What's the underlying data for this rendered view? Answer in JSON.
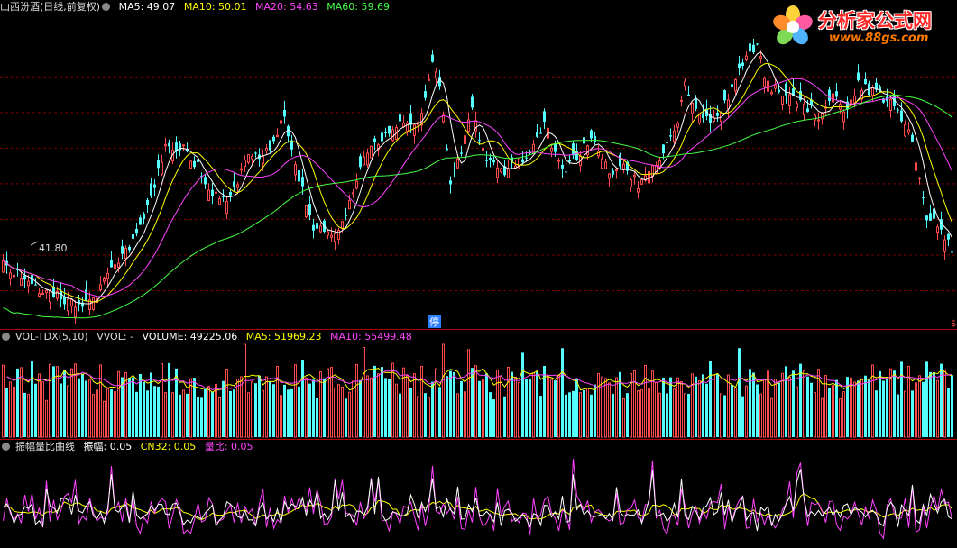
{
  "colors": {
    "up": "#ff4b4b",
    "down": "#54ffff",
    "ma5": "#ffffff",
    "ma10": "#ffff00",
    "ma20": "#ff44ff",
    "ma60": "#44ff44",
    "grid": "#7a0000",
    "separator": "#b00000"
  },
  "price_panel": {
    "stock": "山西汾酒",
    "period": "(日线,前复权)",
    "ma5_label": "MA5: 49.07",
    "ma10_label": "MA10: 50.01",
    "ma20_label": "MA20: 54.63",
    "ma60_label": "MA60: 59.69",
    "low_marker": "41.80",
    "halt_marker": "停",
    "end_marker": "$"
  },
  "volume_panel": {
    "name": "VOL-TDX(5,10)",
    "vvol": "VVOL: -",
    "volume": "VOLUME: 49225.06",
    "ma5": "MA5: 51969.23",
    "ma10": "MA10: 55499.48"
  },
  "amp_panel": {
    "name": "振幅量比曲线",
    "amp": "振幅: 0.05",
    "cn32": "CN32: 0.05",
    "ratio_label": "量比",
    "ratio_value": ": 0.05"
  },
  "logo": {
    "title": "分析家公式网",
    "url": "www.88gs.com"
  },
  "chart_data": [
    {
      "type": "candlestick",
      "title": "山西汾酒 (日线,前复权)",
      "ylim": [
        40,
        82
      ],
      "annotations": [
        {
          "text": "41.80",
          "kind": "period-low"
        },
        {
          "text": "停",
          "kind": "trading-halt"
        }
      ],
      "anchors": [
        [
          0,
          48.5
        ],
        [
          5,
          47.2
        ],
        [
          10,
          45.0
        ],
        [
          15,
          44.6
        ],
        [
          20,
          42.7
        ],
        [
          24,
          43.2
        ],
        [
          29,
          46.9
        ],
        [
          35,
          51.3
        ],
        [
          40,
          56.9
        ],
        [
          45,
          64.8
        ],
        [
          50,
          64.7
        ],
        [
          54,
          62.6
        ],
        [
          58,
          58.2
        ],
        [
          62,
          57.5
        ],
        [
          68,
          63.8
        ],
        [
          73,
          64.5
        ],
        [
          78,
          69.4
        ],
        [
          82,
          60.6
        ],
        [
          86,
          53.9
        ],
        [
          90,
          52.7
        ],
        [
          95,
          55.2
        ],
        [
          100,
          64.1
        ],
        [
          105,
          66.6
        ],
        [
          110,
          68.9
        ],
        [
          114,
          67.6
        ],
        [
          117,
          72.0
        ],
        [
          119,
          77.2
        ],
        [
          121,
          73.2
        ],
        [
          124,
          60.7
        ],
        [
          127,
          64.5
        ],
        [
          130,
          70.3
        ],
        [
          134,
          63.3
        ],
        [
          139,
          61.9
        ],
        [
          145,
          63.8
        ],
        [
          150,
          68.3
        ],
        [
          155,
          62.0
        ],
        [
          160,
          64.4
        ],
        [
          164,
          66.1
        ],
        [
          168,
          61.5
        ],
        [
          172,
          62.6
        ],
        [
          176,
          59.8
        ],
        [
          181,
          62.4
        ],
        [
          186,
          66.7
        ],
        [
          189,
          74.0
        ],
        [
          193,
          70.2
        ],
        [
          197,
          68.9
        ],
        [
          201,
          72.3
        ],
        [
          205,
          76.7
        ],
        [
          209,
          78.9
        ],
        [
          212,
          73.9
        ],
        [
          216,
          72.3
        ],
        [
          221,
          71.1
        ],
        [
          226,
          69.7
        ],
        [
          230,
          73.0
        ],
        [
          233,
          69.8
        ],
        [
          237,
          73.8
        ],
        [
          242,
          72.5
        ],
        [
          247,
          71.3
        ],
        [
          251,
          67.6
        ],
        [
          254,
          60.9
        ],
        [
          256,
          55.3
        ],
        [
          259,
          54.6
        ],
        [
          263,
          51.0
        ]
      ]
    },
    {
      "type": "bar",
      "title": "VOL-TDX(5,10)",
      "series": [
        {
          "name": "VOLUME",
          "last": 49225.06
        },
        {
          "name": "MA5",
          "last": 51969.23
        },
        {
          "name": "MA10",
          "last": 55499.48
        }
      ]
    },
    {
      "type": "line",
      "title": "振幅量比曲线",
      "series": [
        {
          "name": "振幅",
          "last": 0.05
        },
        {
          "name": "CN32",
          "last": 0.05
        },
        {
          "name": "量比",
          "last": 0.05
        }
      ]
    }
  ]
}
